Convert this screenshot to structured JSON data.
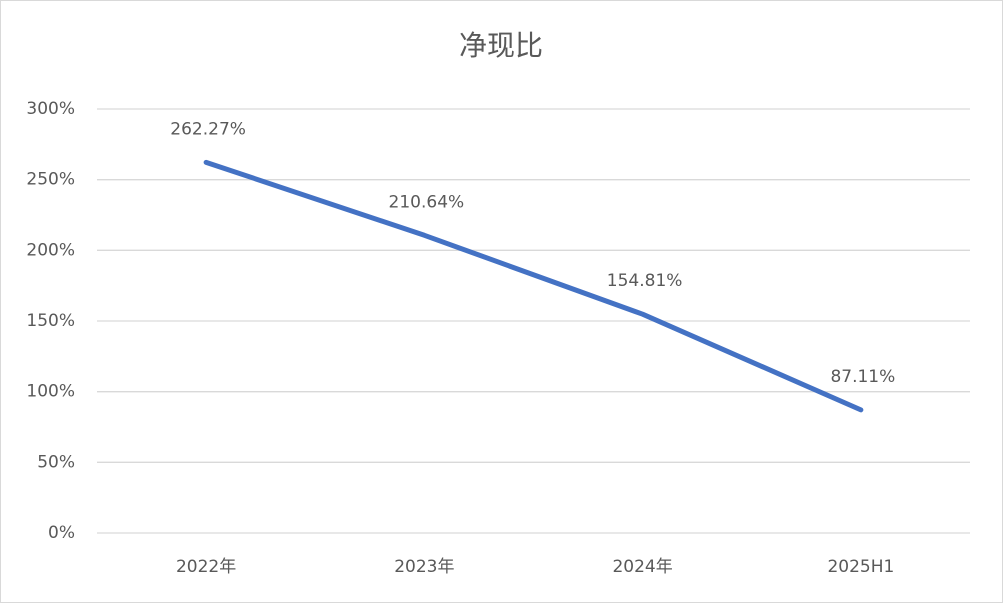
{
  "chart_data": {
    "type": "line",
    "title": "净现比",
    "categories": [
      "2022年",
      "2023年",
      "2024年",
      "2025H1"
    ],
    "series": [
      {
        "color": "#4472c4",
        "values": [
          262.27,
          210.64,
          154.81,
          87.11
        ],
        "value_labels": [
          "262.27%",
          "210.64%",
          "154.81%",
          "87.11%"
        ]
      }
    ],
    "ylim": [
      0,
      300
    ],
    "yticks": [
      {
        "value": 0,
        "label": "0%"
      },
      {
        "value": 50,
        "label": "50%"
      },
      {
        "value": 100,
        "label": "100%"
      },
      {
        "value": 150,
        "label": "150%"
      },
      {
        "value": 200,
        "label": "200%"
      },
      {
        "value": 250,
        "label": "250%"
      },
      {
        "value": 300,
        "label": "300%"
      }
    ],
    "grid": true
  }
}
